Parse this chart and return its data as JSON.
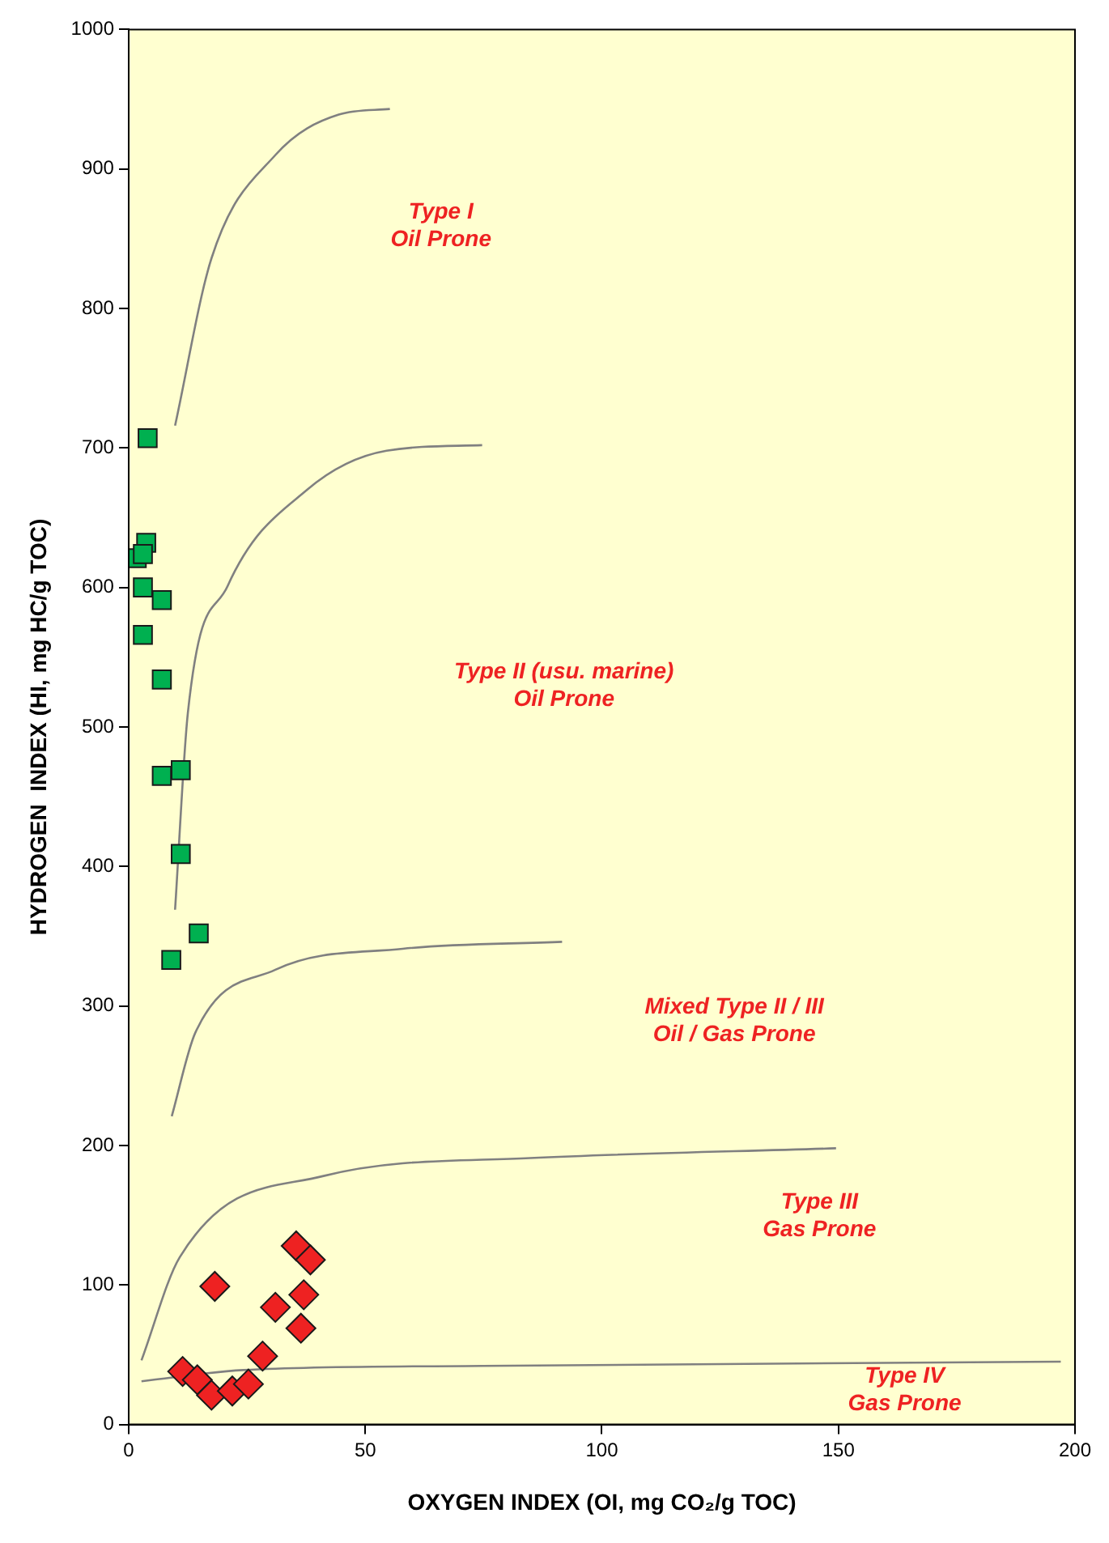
{
  "chart_data": {
    "type": "scatter",
    "xlabel": "OXYGEN INDEX (OI, mg CO₂/g TOC)",
    "ylabel": "HYDROGEN  INDEX (HI, mg HC/g TOC)",
    "xlim": [
      0,
      200
    ],
    "xticks": [
      0,
      50,
      100,
      150,
      200
    ],
    "ylim": [
      0,
      1000
    ],
    "yticks": [
      0,
      100,
      200,
      300,
      400,
      500,
      600,
      700,
      800,
      900,
      1000
    ],
    "grid": false,
    "legend": false,
    "series": [
      {
        "type": "scatter",
        "marker": "square",
        "color": "#00b050",
        "x": [
          4,
          3.7,
          1.7,
          3,
          3,
          7,
          3,
          7,
          11,
          7,
          11,
          14.8,
          9
        ],
        "values": [
          707,
          632,
          621,
          624,
          600,
          591,
          566,
          534,
          469,
          465,
          409,
          352,
          333
        ]
      },
      {
        "type": "scatter",
        "marker": "diamond",
        "color": "#ee2222",
        "x": [
          35.4,
          38.4,
          18.2,
          31,
          37,
          36.4,
          28.3,
          11.4,
          14.5,
          17.5,
          21.9,
          25.3
        ],
        "values": [
          128,
          118,
          99,
          84,
          93,
          69,
          49,
          38,
          32,
          21,
          24,
          29
        ]
      },
      {
        "type": "line",
        "marker": "none",
        "color": "#808080",
        "x": [
          9.8,
          17.5,
          31,
          44.4,
          55.2
        ],
        "values": [
          716,
          836,
          910,
          939,
          943
        ]
      },
      {
        "type": "line",
        "marker": "none",
        "color": "#808080",
        "x": [
          9.8,
          12.5,
          20.9,
          37.7,
          54.5,
          74.7
        ],
        "values": [
          369,
          510,
          601,
          670,
          698,
          702
        ]
      },
      {
        "type": "line",
        "marker": "none",
        "color": "#808080",
        "x": [
          9.1,
          14.1,
          31,
          57.9,
          91.6
        ],
        "values": [
          221,
          281,
          326,
          341,
          346
        ]
      },
      {
        "type": "line",
        "marker": "none",
        "color": "#808080",
        "x": [
          2.7,
          10.8,
          41,
          84.8,
          149.5
        ],
        "values": [
          46,
          120,
          178,
          191,
          198
        ]
      },
      {
        "type": "line",
        "marker": "none",
        "color": "#808080",
        "x": [
          2.7,
          24.2,
          74.7,
          197
        ],
        "values": [
          31,
          39,
          42,
          45
        ]
      }
    ],
    "annotations": [
      "Type I\nOil Prone",
      "Type II (usu. marine)\nOil Prone",
      "Mixed Type II / III\nOil / Gas Prone",
      "Type III\nGas Prone",
      "Type IV\nGas Prone"
    ]
  }
}
